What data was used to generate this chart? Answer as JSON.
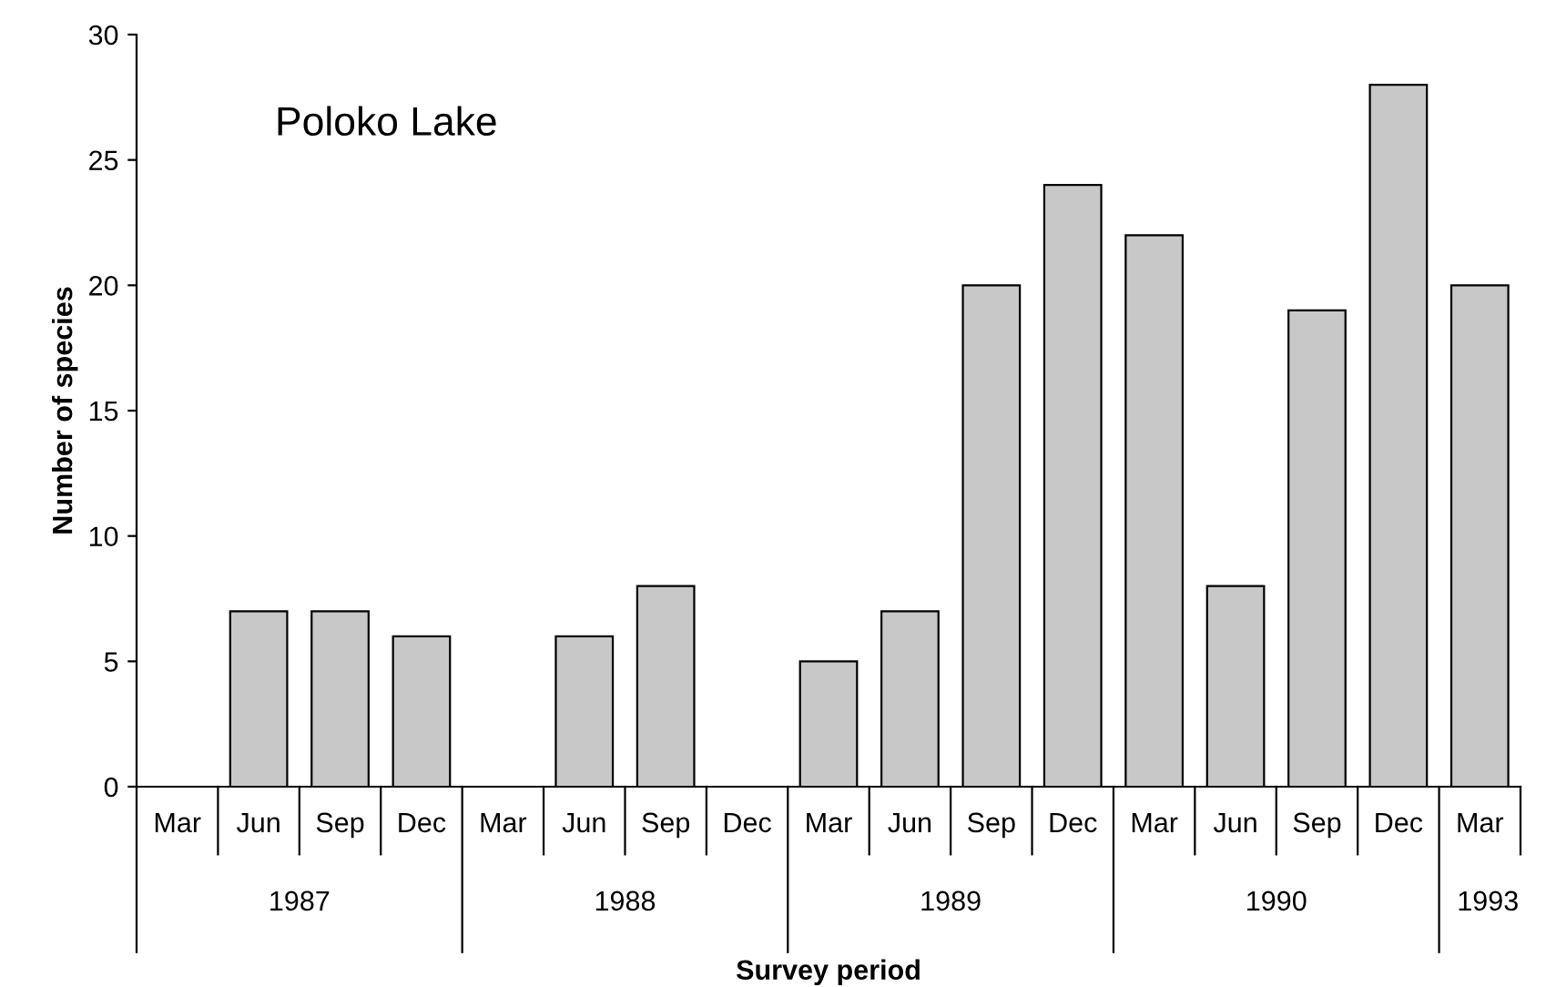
{
  "chart_data": {
    "type": "bar",
    "title": "Poloko Lake",
    "xlabel": "Survey period",
    "ylabel": "Number of species",
    "categories": [
      "Mar",
      "Jun",
      "Sep",
      "Dec",
      "Mar",
      "Jun",
      "Sep",
      "Dec",
      "Mar",
      "Jun",
      "Sep",
      "Dec",
      "Mar",
      "Jun",
      "Sep",
      "Dec",
      "Mar"
    ],
    "values": [
      null,
      7,
      7,
      6,
      null,
      6,
      8,
      null,
      5,
      7,
      20,
      24,
      22,
      8,
      19,
      28,
      20
    ],
    "color": "#c8c8c8",
    "annotations": [
      "1987",
      "1988",
      "1989",
      "1990",
      "1993"
    ],
    "ylim": [
      0,
      30
    ],
    "yticks": [
      0,
      5,
      10,
      15,
      20,
      25,
      30
    ],
    "grid": false,
    "legend": false
  }
}
